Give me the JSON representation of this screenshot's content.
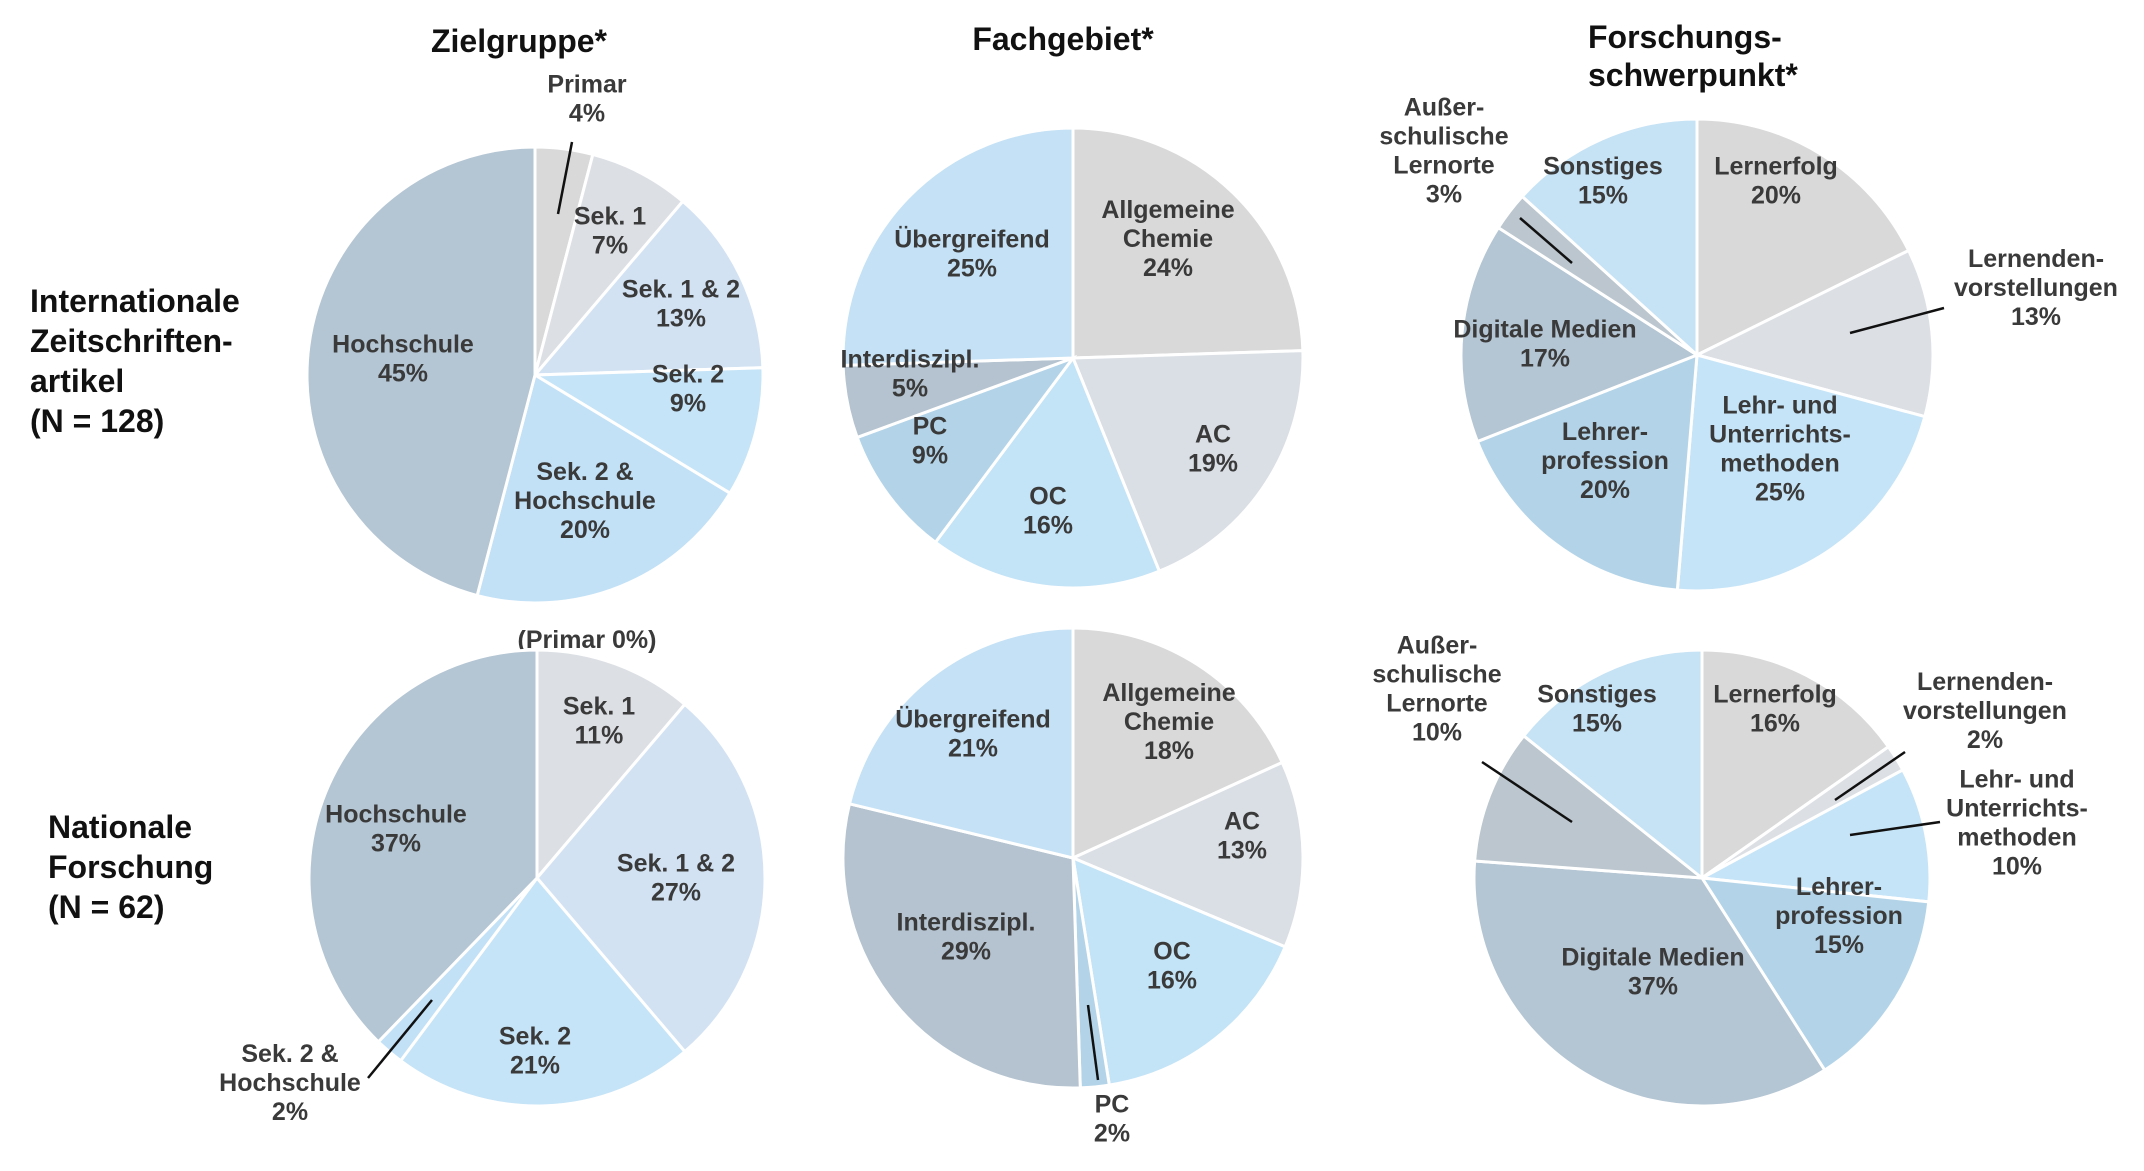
{
  "column_titles": {
    "zielgruppe": "Zielgruppe*",
    "fachgebiet": "Fachgebiet*",
    "forschung_line1": "Forschungs-",
    "forschung_line2": "schwerpunkt*"
  },
  "row_labels": {
    "international": [
      "Internationale",
      "Zeitschriften-",
      "artikel",
      "(N = 128)"
    ],
    "national": [
      "Nationale",
      "Forschung",
      "(N = 62)"
    ]
  },
  "colors": {
    "primar": "#d9d9d9",
    "sek1": "#dcdfe4",
    "sek12": "#d2e2f3",
    "sek2": "#c6e4f7",
    "sek2hs": "#c2e1f6",
    "hochschule": "#b4c5d3",
    "allg": "#d9d9d9",
    "ac": "#dadfe5",
    "oc": "#c3e3f7",
    "pc": "#b3d4e8",
    "interdis": "#b4c3cf",
    "uebergreifend": "#c4e1f5",
    "lernerfolg": "#d9d9d9",
    "lernvorst": "#dcdfe4",
    "lehrmeth": "#c6e4f7",
    "lehrprof": "#b3d4e8",
    "digital": "#b4c5d3",
    "ausser": "#bcc6ce",
    "sonstiges": "#c6e2f5"
  },
  "chart_data": [
    {
      "type": "pie",
      "title": "Zielgruppe*",
      "row": "Internationale Zeitschriftenartikel (N = 128)",
      "slices": [
        {
          "label": "Primar",
          "value": 4,
          "label_text": [
            "Primar",
            "4%"
          ],
          "color": "primar"
        },
        {
          "label": "Sek. 1",
          "value": 7,
          "label_text": [
            "Sek. 1",
            "7%"
          ],
          "color": "sek1"
        },
        {
          "label": "Sek. 1 & 2",
          "value": 13,
          "label_text": [
            "Sek. 1 & 2",
            "13%"
          ],
          "color": "sek12"
        },
        {
          "label": "Sek. 2",
          "value": 9,
          "label_text": [
            "Sek. 2",
            "9%"
          ],
          "color": "sek2"
        },
        {
          "label": "Sek. 2 & Hochschule",
          "value": 20,
          "label_text": [
            "Sek. 2 &",
            "Hochschule",
            "20%"
          ],
          "color": "sek2hs"
        },
        {
          "label": "Hochschule",
          "value": 45,
          "label_text": [
            "Hochschule",
            "45%"
          ],
          "color": "hochschule"
        }
      ]
    },
    {
      "type": "pie",
      "title": "Fachgebiet*",
      "row": "Internationale Zeitschriftenartikel (N = 128)",
      "slices": [
        {
          "label": "Allgemeine Chemie",
          "value": 24,
          "label_text": [
            "Allgemeine",
            "Chemie",
            "24%"
          ],
          "color": "allg"
        },
        {
          "label": "AC",
          "value": 19,
          "label_text": [
            "AC",
            "19%"
          ],
          "color": "ac"
        },
        {
          "label": "OC",
          "value": 16,
          "label_text": [
            "OC",
            "16%"
          ],
          "color": "oc"
        },
        {
          "label": "PC",
          "value": 9,
          "label_text": [
            "PC",
            "9%"
          ],
          "color": "pc"
        },
        {
          "label": "Interdiszipl.",
          "value": 5,
          "label_text": [
            "Interdiszipl.",
            "5%"
          ],
          "color": "interdis"
        },
        {
          "label": "Übergreifend",
          "value": 25,
          "label_text": [
            "Übergreifend",
            "25%"
          ],
          "color": "uebergreifend"
        }
      ]
    },
    {
      "type": "pie",
      "title": "Forschungsschwerpunkt*",
      "row": "Internationale Zeitschriftenartikel (N = 128)",
      "slices": [
        {
          "label": "Lernerfolg",
          "value": 20,
          "label_text": [
            "Lernerfolg",
            "20%"
          ],
          "color": "lernerfolg"
        },
        {
          "label": "Lernendenvorstellungen",
          "value": 13,
          "label_text": [
            "Lernenden-",
            "vorstellungen",
            "13%"
          ],
          "color": "lernvorst"
        },
        {
          "label": "Lehr- und Unterrichtsmethoden",
          "value": 25,
          "label_text": [
            "Lehr- und",
            "Unterrichts-",
            "methoden",
            "25%"
          ],
          "color": "lehrmeth"
        },
        {
          "label": "Lehrerprofession",
          "value": 20,
          "label_text": [
            "Lehrer-",
            "profession",
            "20%"
          ],
          "color": "lehrprof"
        },
        {
          "label": "Digitale Medien",
          "value": 17,
          "label_text": [
            "Digitale Medien",
            "17%"
          ],
          "color": "digital"
        },
        {
          "label": "Außerschulische Lernorte",
          "value": 3,
          "label_text": [
            "Außer-",
            "schulische",
            "Lernorte",
            "3%"
          ],
          "color": "ausser"
        },
        {
          "label": "Sonstiges",
          "value": 15,
          "label_text": [
            "Sonstiges",
            "15%"
          ],
          "color": "sonstiges"
        }
      ]
    },
    {
      "type": "pie",
      "title": "Zielgruppe*",
      "row": "Nationale Forschung (N = 62)",
      "note": "(Primar 0%)",
      "slices": [
        {
          "label": "Sek. 1",
          "value": 11,
          "label_text": [
            "Sek. 1",
            "11%"
          ],
          "color": "sek1"
        },
        {
          "label": "Sek. 1 & 2",
          "value": 27,
          "label_text": [
            "Sek. 1 & 2",
            "27%"
          ],
          "color": "sek12"
        },
        {
          "label": "Sek. 2",
          "value": 21,
          "label_text": [
            "Sek. 2",
            "21%"
          ],
          "color": "sek2"
        },
        {
          "label": "Sek. 2 & Hochschule",
          "value": 2,
          "label_text": [
            "Sek. 2 &",
            "Hochschule",
            "2%"
          ],
          "color": "sek2hs"
        },
        {
          "label": "Hochschule",
          "value": 37,
          "label_text": [
            "Hochschule",
            "37%"
          ],
          "color": "hochschule"
        }
      ]
    },
    {
      "type": "pie",
      "title": "Fachgebiet*",
      "row": "Nationale Forschung (N = 62)",
      "slices": [
        {
          "label": "Allgemeine Chemie",
          "value": 18,
          "label_text": [
            "Allgemeine",
            "Chemie",
            "18%"
          ],
          "color": "allg"
        },
        {
          "label": "AC",
          "value": 13,
          "label_text": [
            "AC",
            "13%"
          ],
          "color": "ac"
        },
        {
          "label": "OC",
          "value": 16,
          "label_text": [
            "OC",
            "16%"
          ],
          "color": "oc"
        },
        {
          "label": "PC",
          "value": 2,
          "label_text": [
            "PC",
            "2%"
          ],
          "color": "pc"
        },
        {
          "label": "Interdiszipl.",
          "value": 29,
          "label_text": [
            "Interdiszipl.",
            "29%"
          ],
          "color": "interdis"
        },
        {
          "label": "Übergreifend",
          "value": 21,
          "label_text": [
            "Übergreifend",
            "21%"
          ],
          "color": "uebergreifend"
        }
      ]
    },
    {
      "type": "pie",
      "title": "Forschungsschwerpunkt*",
      "row": "Nationale Forschung (N = 62)",
      "slices": [
        {
          "label": "Lernerfolg",
          "value": 16,
          "label_text": [
            "Lernerfolg",
            "16%"
          ],
          "color": "lernerfolg"
        },
        {
          "label": "Lernendenvorstellungen",
          "value": 2,
          "label_text": [
            "Lernenden-",
            "vorstellungen",
            "2%"
          ],
          "color": "lernvorst"
        },
        {
          "label": "Lehr- und Unterrichtsmethoden",
          "value": 10,
          "label_text": [
            "Lehr- und",
            "Unterrichts-",
            "methoden",
            "10%"
          ],
          "color": "lehrmeth"
        },
        {
          "label": "Lehrerprofession",
          "value": 15,
          "label_text": [
            "Lehrer-",
            "profession",
            "15%"
          ],
          "color": "lehrprof"
        },
        {
          "label": "Digitale Medien",
          "value": 37,
          "label_text": [
            "Digitale Medien",
            "37%"
          ],
          "color": "digital"
        },
        {
          "label": "Außerschulische Lernorte",
          "value": 10,
          "label_text": [
            "Außer-",
            "schulische",
            "Lernorte",
            "10%"
          ],
          "color": "ausser"
        },
        {
          "label": "Sonstiges",
          "value": 15,
          "label_text": [
            "Sonstiges",
            "15%"
          ],
          "color": "sonstiges"
        }
      ]
    }
  ]
}
